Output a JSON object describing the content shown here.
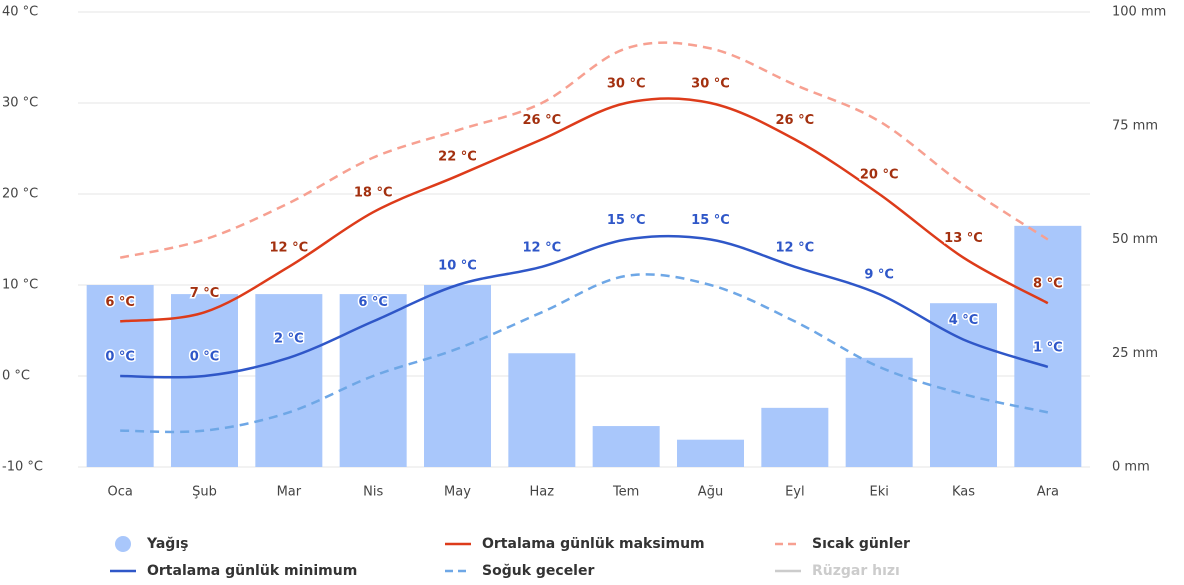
{
  "chart_data": {
    "type": "climate",
    "categories": [
      "Oca",
      "Şub",
      "Mar",
      "Nis",
      "May",
      "Haz",
      "Tem",
      "Ağu",
      "Eyl",
      "Eki",
      "Kas",
      "Ara"
    ],
    "ylim": [
      -10,
      40
    ],
    "yticks": [
      {
        "value": -10,
        "label": "-10 °C"
      },
      {
        "value": 0,
        "label": "0 °C"
      },
      {
        "value": 10,
        "label": "10 °C"
      },
      {
        "value": 20,
        "label": "20 °C"
      },
      {
        "value": 30,
        "label": "30 °C"
      },
      {
        "value": 40,
        "label": "40 °C"
      }
    ],
    "y2lim": [
      0,
      100
    ],
    "y2ticks": [
      {
        "value": 0,
        "label": "0 mm"
      },
      {
        "value": 25,
        "label": "25 mm"
      },
      {
        "value": 50,
        "label": "50 mm"
      },
      {
        "value": 75,
        "label": "75 mm"
      },
      {
        "value": 100,
        "label": "100 mm"
      }
    ],
    "grid": true,
    "series": [
      {
        "name": "Yağış",
        "kind": "bar",
        "axis": "y2",
        "color": "#a9c7fb",
        "values": [
          40,
          38,
          38,
          38,
          40,
          25,
          9,
          6,
          13,
          24,
          36,
          53
        ]
      },
      {
        "name": "Ortalama günlük maksimum",
        "kind": "line",
        "color": "#dd3b1a",
        "label_color": "#a3300f",
        "values": [
          6,
          7,
          12,
          18,
          22,
          26,
          30,
          30,
          26,
          20,
          13,
          8
        ],
        "value_labels": [
          "6 °C",
          "7 °C",
          "12 °C",
          "18 °C",
          "22 °C",
          "26 °C",
          "30 °C",
          "30 °C",
          "26 °C",
          "20 °C",
          "13 °C",
          "8 °C"
        ]
      },
      {
        "name": "Sıcak günler",
        "kind": "dashed",
        "color": "#f7a091",
        "values": [
          13,
          15,
          19,
          24,
          27,
          30,
          36,
          36,
          32,
          28,
          21,
          15
        ]
      },
      {
        "name": "Ortalama günlük minimum",
        "kind": "line",
        "color": "#2f57c8",
        "label_color": "#2f57c8",
        "values": [
          0,
          0,
          2,
          6,
          10,
          12,
          15,
          15,
          12,
          9,
          4,
          1
        ],
        "value_labels": [
          "0 °C",
          "0 °C",
          "2 °C",
          "6 °C",
          "10 °C",
          "12 °C",
          "15 °C",
          "15 °C",
          "12 °C",
          "9 °C",
          "4 °C",
          "1 °C"
        ]
      },
      {
        "name": "Soğuk geceler",
        "kind": "dashed",
        "color": "#6ea7e6",
        "values": [
          -6,
          -6,
          -4,
          0,
          3,
          7,
          11,
          10,
          6,
          1,
          -2,
          -4
        ]
      },
      {
        "name": "Rüzgar hızı",
        "kind": "hidden",
        "color": "#cccccc"
      }
    ]
  }
}
